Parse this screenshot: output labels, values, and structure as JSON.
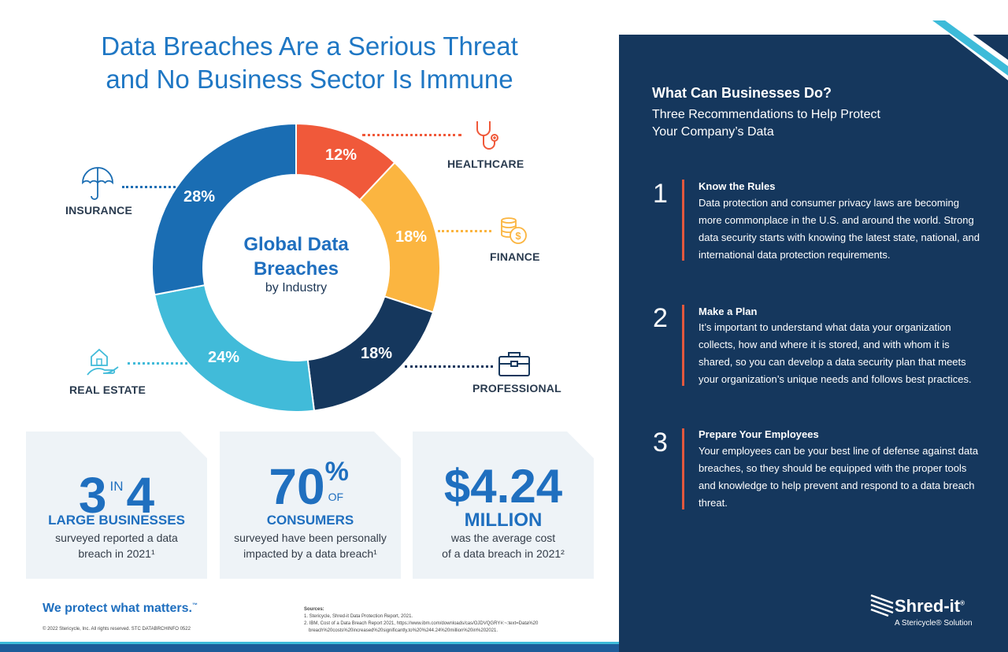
{
  "title_line1": "Data Breaches Are a Serious Threat",
  "title_line2": "and No Business Sector Is Immune",
  "chart_data": {
    "type": "pie",
    "title": "Global Data Breaches",
    "subtitle": "by Industry",
    "categories": [
      "HEALTHCARE",
      "FINANCE",
      "PROFESSIONAL",
      "REAL ESTATE",
      "INSURANCE"
    ],
    "values": [
      12,
      18,
      18,
      24,
      28
    ],
    "labels": [
      "12%",
      "18%",
      "18%",
      "24%",
      "28%"
    ],
    "colors": [
      "#f0593a",
      "#fbb540",
      "#15375d",
      "#41bbd9",
      "#1a6db3"
    ]
  },
  "center": {
    "title_line1": "Global Data",
    "title_line2": "Breaches",
    "subtitle": "by Industry"
  },
  "industries": {
    "healthcare": {
      "label": "HEALTHCARE",
      "icon": "stethoscope-icon",
      "color": "#f0593a"
    },
    "finance": {
      "label": "FINANCE",
      "icon": "coins-dollar-icon",
      "color": "#fbb540"
    },
    "professional": {
      "label": "PROFESSIONAL",
      "icon": "briefcase-icon",
      "color": "#15375d"
    },
    "real_estate": {
      "label": "REAL ESTATE",
      "icon": "house-hand-icon",
      "color": "#41bbd9"
    },
    "insurance": {
      "label": "INSURANCE",
      "icon": "umbrella-icon",
      "color": "#1a6db3"
    }
  },
  "stats": [
    {
      "big_a": "3",
      "mid": "IN",
      "big_b": "4",
      "label": "LARGE BUSINESSES",
      "desc_line1": "surveyed reported a data",
      "desc_line2": "breach in 2021¹"
    },
    {
      "big": "70",
      "pct": "%",
      "of": "OF",
      "label": "CONSUMERS",
      "desc_line1": "surveyed have been personally",
      "desc_line2": "impacted by a data breach¹"
    },
    {
      "big": "$4.24",
      "label": "MILLION",
      "desc_line1": "was the average cost",
      "desc_line2": "of a data breach in 2021²"
    }
  ],
  "footer": {
    "tagline": "We protect what matters.",
    "tagline_mark": "™",
    "copyright": "© 2022 Stericycle, Inc. All rights reserved.   STC DATABRCHINFO 0522",
    "sources_head": "Sources:",
    "source1": "1. Stericycle, Shred-it Data Protection Report, 2021.",
    "source2": "2. IBM, Cost of a Data Breach Report 2021, https://www.ibm.com/downloads/cas/OJDVQGRY#:~:text=Data%20",
    "source2b": "breach%20costs%20increased%20significantly,to%20%244.24%20million%20in%202021."
  },
  "right": {
    "heading": "What Can Businesses Do?",
    "sub_line1": "Three Recommendations to Help Protect",
    "sub_line2": "Your Company’s Data",
    "recs": [
      {
        "num": "1",
        "title": "Know the Rules",
        "body": "Data protection and consumer privacy laws are becoming more commonplace in the U.S. and around the world. Strong data security starts with knowing the latest state, national, and international data protection requirements."
      },
      {
        "num": "2",
        "title": "Make a Plan",
        "body": "It’s important to understand what data your organization collects, how and where it is stored, and with whom it is shared, so you can develop a data security plan that meets your organization’s unique needs and follows best practices."
      },
      {
        "num": "3",
        "title": "Prepare Your Employees",
        "body": "Your employees can be your best line of defense against data breaches, so they should be equipped with the proper tools and knowledge to help prevent and respond to a data breach threat."
      }
    ],
    "accent": "#e2583e",
    "panel_color": "#15375d"
  },
  "logo": {
    "name": "Shred-it",
    "mark": "®",
    "sub": "A Stericycle® Solution",
    "icon": "shred-lines-icon"
  }
}
